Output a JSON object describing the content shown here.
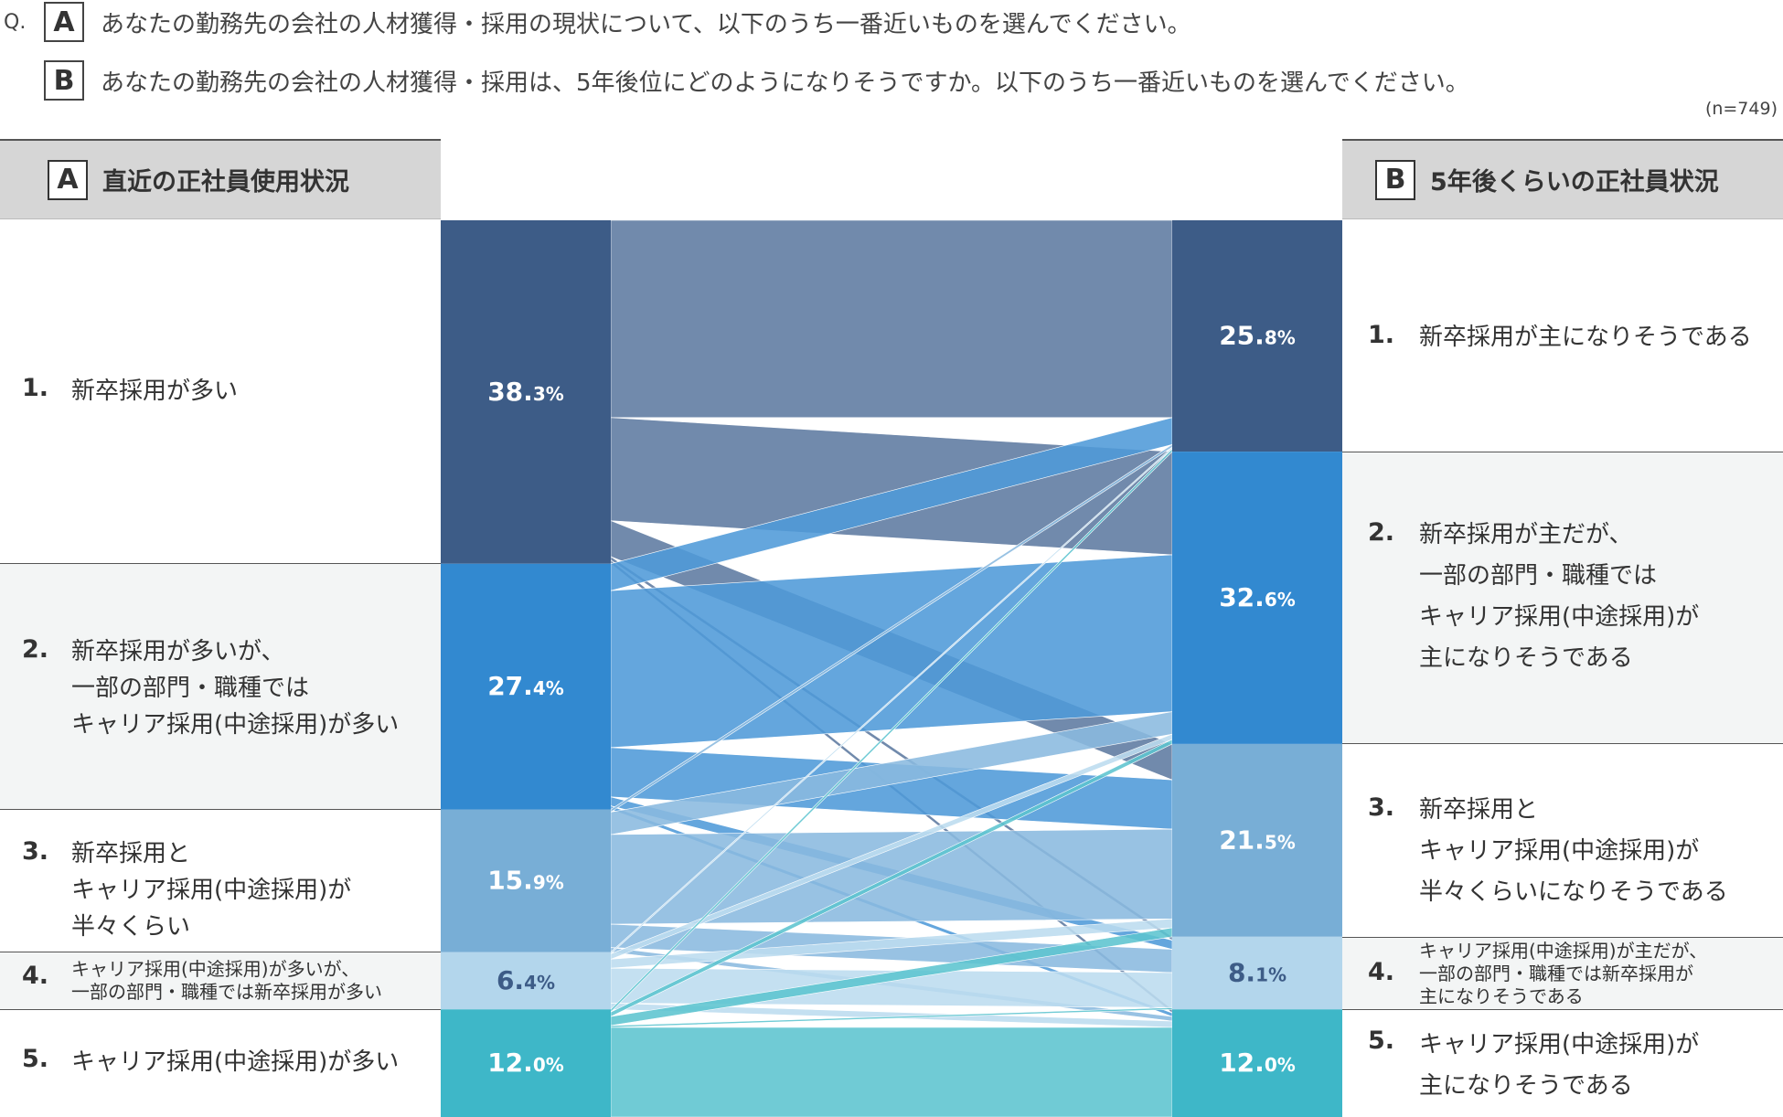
{
  "question": {
    "prefix": "Q.",
    "a_label": "A",
    "a_text": "あなたの勤務先の会社の人材獲得・採用の現状について、以下のうち一番近いものを選んでください。",
    "b_label": "B",
    "b_text": "あなたの勤務先の会社の人材獲得・採用は、5年後位にどのようになりそうですか。以下のうち一番近いものを選んでください。",
    "n": "(n=749)"
  },
  "left_header": {
    "box": "A",
    "title": "直近の正社員使用状況"
  },
  "right_header": {
    "box": "B",
    "title": "5年後くらいの正社員状況"
  },
  "left_rows": [
    {
      "num": "1.",
      "text": "新卒採用が多い"
    },
    {
      "num": "2.",
      "text": "新卒採用が多いが、\n一部の部門・職種では\nキャリア採用(中途採用)が多い"
    },
    {
      "num": "3.",
      "text": "新卒採用と\nキャリア採用(中途採用)が\n半々くらい"
    },
    {
      "num": "4.",
      "text": "キャリア採用(中途採用)が多いが、\n一部の部門・職種では新卒採用が多い"
    },
    {
      "num": "5.",
      "text": "キャリア採用(中途採用)が多い"
    }
  ],
  "right_rows": [
    {
      "num": "1.",
      "text": "新卒採用が主になりそうである"
    },
    {
      "num": "2.",
      "text": "新卒採用が主だが、\n一部の部門・職種では\nキャリア採用(中途採用)が\n主になりそうである"
    },
    {
      "num": "3.",
      "text": "新卒採用と\nキャリア採用(中途採用)が\n半々くらいになりそうである"
    },
    {
      "num": "4.",
      "text": "キャリア採用(中途採用)が主だが、\n一部の部門・職種では新卒採用が\n主になりそうである"
    },
    {
      "num": "5.",
      "text": "キャリア採用(中途採用)が\n主になりそうである"
    }
  ],
  "chart_data": {
    "type": "sankey",
    "colors": [
      "#3d5c87",
      "#3289d0",
      "#78aed6",
      "#b3d6ec",
      "#3eb7c8"
    ],
    "left_values": [
      38.3,
      27.4,
      15.9,
      6.4,
      12.0
    ],
    "left_labels": [
      {
        "main": "38.",
        "dec": "3%"
      },
      {
        "main": "27.",
        "dec": "4%"
      },
      {
        "main": "15.",
        "dec": "9%"
      },
      {
        "main": "6.",
        "dec": "4%"
      },
      {
        "main": "12.",
        "dec": "0%"
      }
    ],
    "right_values": [
      25.8,
      32.6,
      21.5,
      8.1,
      12.0
    ],
    "right_labels": [
      {
        "main": "25.",
        "dec": "8%"
      },
      {
        "main": "32.",
        "dec": "6%"
      },
      {
        "main": "21.",
        "dec": "5%"
      },
      {
        "main": "8.",
        "dec": "1%"
      },
      {
        "main": "12.",
        "dec": "0%"
      }
    ],
    "flows": [
      [
        22.0,
        11.5,
        4.0,
        0.4,
        0.4
      ],
      [
        3.0,
        17.5,
        5.5,
        1.0,
        0.4
      ],
      [
        0.3,
        2.5,
        10.0,
        2.6,
        0.5
      ],
      [
        0.2,
        0.6,
        1.0,
        3.9,
        0.7
      ],
      [
        0.3,
        0.5,
        1.0,
        0.2,
        10.0
      ]
    ]
  }
}
